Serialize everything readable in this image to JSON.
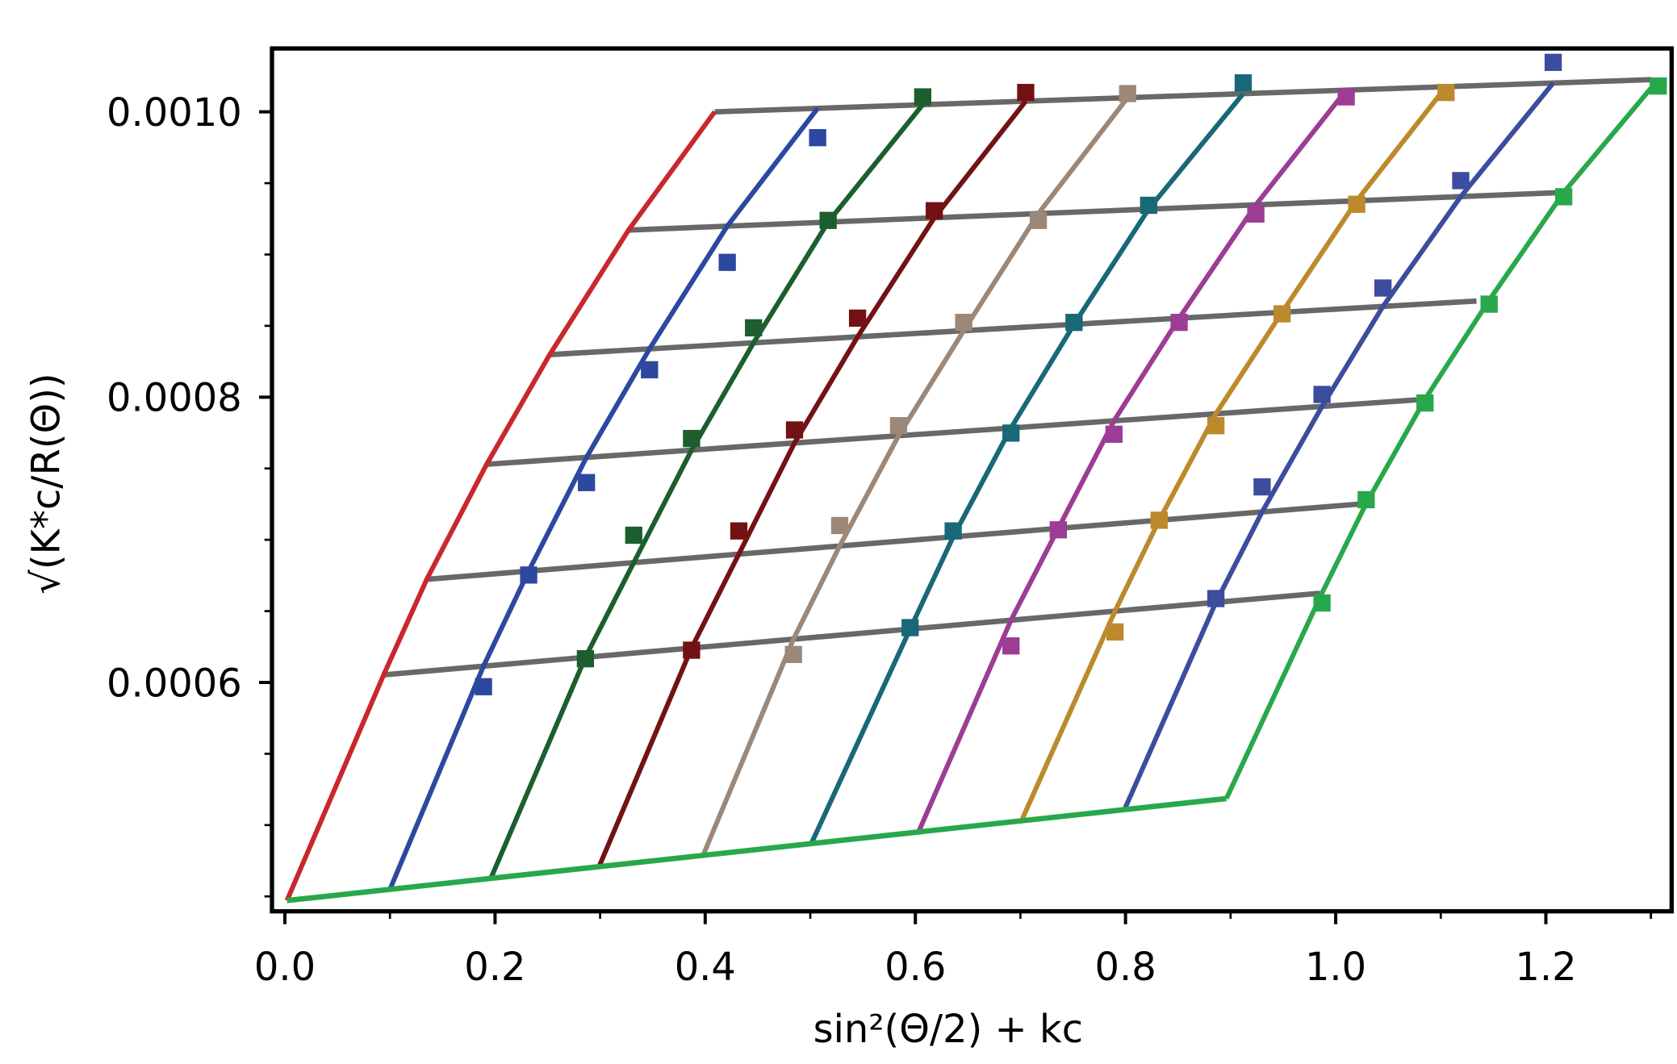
{
  "chart_data": {
    "type": "scatter",
    "title": "",
    "xlabel": "sin²(Θ/2) + kc",
    "ylabel": "√(K*c/R(Θ))",
    "xlim": [
      -0.012,
      1.32
    ],
    "ylim": [
      0.00044,
      0.001044
    ],
    "x_ticks": [
      "0.0",
      "0.2",
      "0.4",
      "0.6",
      "0.8",
      "1.0",
      "1.2"
    ],
    "x_tick_values": [
      0,
      0.2,
      0.4,
      0.6,
      0.8,
      1.0,
      1.2
    ],
    "y_ticks": [
      "0.0006",
      "0.0008",
      "0.0010"
    ],
    "y_tick_values": [
      0.0006,
      0.0008,
      0.001
    ],
    "grid": false,
    "marker": "square",
    "colors": {
      "concentration_fit": "#686868",
      "zero_angle_extrapolation": "#c8282c",
      "zero_concentration_extrapolation": "#28a84a"
    },
    "angle_series": [
      {
        "color": "#2c48a0",
        "c0_x": 0.1,
        "x": [
          0.189,
          0.232,
          0.287,
          0.347,
          0.421,
          0.507
        ],
        "y": [
          0.000597,
          0.0006753,
          0.0007401,
          0.0008192,
          0.0008945,
          0.0009819
        ]
      },
      {
        "color": "#1c5e2e",
        "c0_x": 0.196,
        "x": [
          0.286,
          0.332,
          0.387,
          0.446,
          0.517,
          0.607
        ],
        "y": [
          0.0006166,
          0.0007032,
          0.000771,
          0.0008486,
          0.0009239,
          0.0010105
        ]
      },
      {
        "color": "#731214",
        "c0_x": 0.299,
        "x": [
          0.387,
          0.432,
          0.485,
          0.545,
          0.618,
          0.705
        ],
        "y": [
          0.0006226,
          0.0007062,
          0.000777,
          0.0008554,
          0.0009307,
          0.0010136
        ]
      },
      {
        "color": "#9c8878",
        "c0_x": 0.398,
        "x": [
          0.484,
          0.528,
          0.584,
          0.646,
          0.717,
          0.802
        ],
        "y": [
          0.0006196,
          0.00071,
          0.00078,
          0.0008524,
          0.0009239,
          0.0010128
        ]
      },
      {
        "color": "#186878",
        "c0_x": 0.501,
        "x": [
          0.595,
          0.636,
          0.691,
          0.751,
          0.822,
          0.912
        ],
        "y": [
          0.0006384,
          0.0007062,
          0.0007748,
          0.0008524,
          0.0009345,
          0.0010203
        ]
      },
      {
        "color": "#9c3c94",
        "c0_x": 0.603,
        "x": [
          0.691,
          0.736,
          0.789,
          0.851,
          0.924,
          1.01
        ],
        "y": [
          0.0006256,
          0.000707,
          0.000774,
          0.0008524,
          0.0009284,
          0.0010105
        ]
      },
      {
        "color": "#bc8a2c",
        "c0_x": 0.701,
        "x": [
          0.79,
          0.832,
          0.886,
          0.949,
          1.02,
          1.105
        ],
        "y": [
          0.0006354,
          0.0007137,
          0.00078,
          0.0008584,
          0.0009352,
          0.0010136
        ]
      },
      {
        "color": "#3c4c9e",
        "c0_x": 0.799,
        "x": [
          0.886,
          0.93,
          0.987,
          1.045,
          1.119,
          1.207
        ],
        "y": [
          0.0006588,
          0.0007371,
          0.0008019,
          0.0008765,
          0.0009518,
          0.0010347
        ]
      },
      {
        "color": "#28a84a",
        "c0_x": 0.896,
        "x": [
          0.987,
          1.029,
          1.085,
          1.146,
          1.217,
          1.307
        ],
        "y": [
          0.0006557,
          0.0007281,
          0.0007959,
          0.0008652,
          0.0009405,
          0.0010181
        ]
      }
    ],
    "concentration_fits": [
      {
        "x": [
          0.094,
          0.985
        ],
        "y": [
          0.0006053,
          0.0006625
        ]
      },
      {
        "x": [
          0.135,
          1.022
        ],
        "y": [
          0.0006723,
          0.000725
        ]
      },
      {
        "x": [
          0.192,
          1.077
        ],
        "y": [
          0.0007529,
          0.0007981
        ]
      },
      {
        "x": [
          0.252,
          1.134
        ],
        "y": [
          0.0008298,
          0.0008674
        ]
      },
      {
        "x": [
          0.327,
          1.217
        ],
        "y": [
          0.0009171,
          0.0009435
        ]
      },
      {
        "x": [
          0.409,
          1.301
        ],
        "y": [
          0.001,
          0.0010226
        ]
      }
    ],
    "zero_concentration_line": {
      "x": [
        0.002,
        0.896
      ],
      "y": [
        0.0004471,
        0.0005186
      ]
    }
  }
}
